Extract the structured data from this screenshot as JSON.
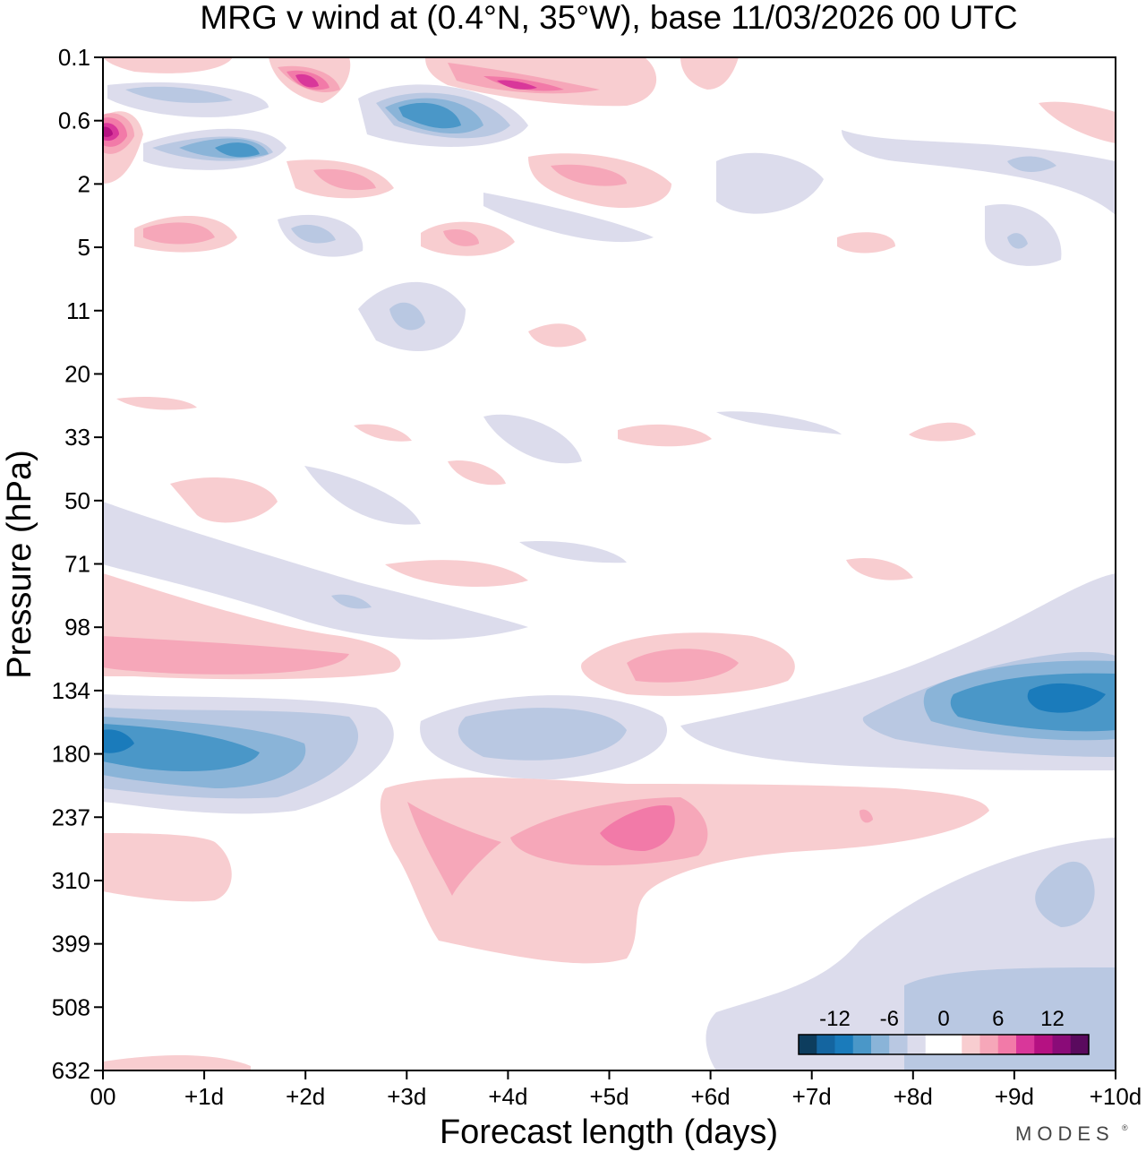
{
  "chart_data": {
    "type": "heatmap",
    "title": "MRG v wind at (0.4°N, 35°W),  base 11/03/2026  00 UTC",
    "xlabel": "Forecast length (days)",
    "ylabel": "Pressure (hPa)",
    "x_ticks": [
      "00",
      "+1d",
      "+2d",
      "+3d",
      "+4d",
      "+5d",
      "+6d",
      "+7d",
      "+8d",
      "+9d",
      "+10d"
    ],
    "x_range_days": [
      0,
      10
    ],
    "y_ticks": [
      "0.1",
      "0.6",
      "2",
      "5",
      "11",
      "20",
      "33",
      "50",
      "71",
      "98",
      "134",
      "180",
      "237",
      "310",
      "399",
      "508",
      "632"
    ],
    "y_direction": "pressure increases downward",
    "colorbar": {
      "levels": [
        -15,
        -12,
        -9,
        -6,
        -3,
        -1,
        0,
        1,
        3,
        6,
        9,
        12,
        15
      ],
      "tick_labels": [
        "-12",
        "-6",
        "0",
        "6",
        "12"
      ],
      "colors": [
        "#0d3d5e",
        "#1465a0",
        "#1a7bbb",
        "#4a97c8",
        "#8ab4d8",
        "#b9c8e2",
        "#dcdcec",
        "#ffffff",
        "#ffffff",
        "#f8cdd0",
        "#f6a7b9",
        "#f27aa8",
        "#d9379a",
        "#b51182",
        "#8a0b78",
        "#5a0a5e"
      ]
    },
    "features": [
      {
        "name": "upper-level dipole band (0.1-2 hPa)",
        "signs": "alternating",
        "peak_ms": 12
      },
      {
        "name": "positive band near 98-134 hPa, 0-2.5d",
        "sign": "positive",
        "peak_ms": 6
      },
      {
        "name": "negative core near 180 hPa at day 0",
        "sign": "negative",
        "peak_ms": -12
      },
      {
        "name": "negative core near 134 hPa at day 9.5",
        "sign": "negative",
        "peak_ms": -12
      },
      {
        "name": "positive core near 237 hPa at day 5",
        "sign": "positive",
        "peak_ms": 9
      },
      {
        "name": "negative area 310-632 hPa, days 6-10",
        "sign": "negative",
        "peak_ms": -6
      }
    ]
  },
  "branding": {
    "logo": "MODES"
  }
}
